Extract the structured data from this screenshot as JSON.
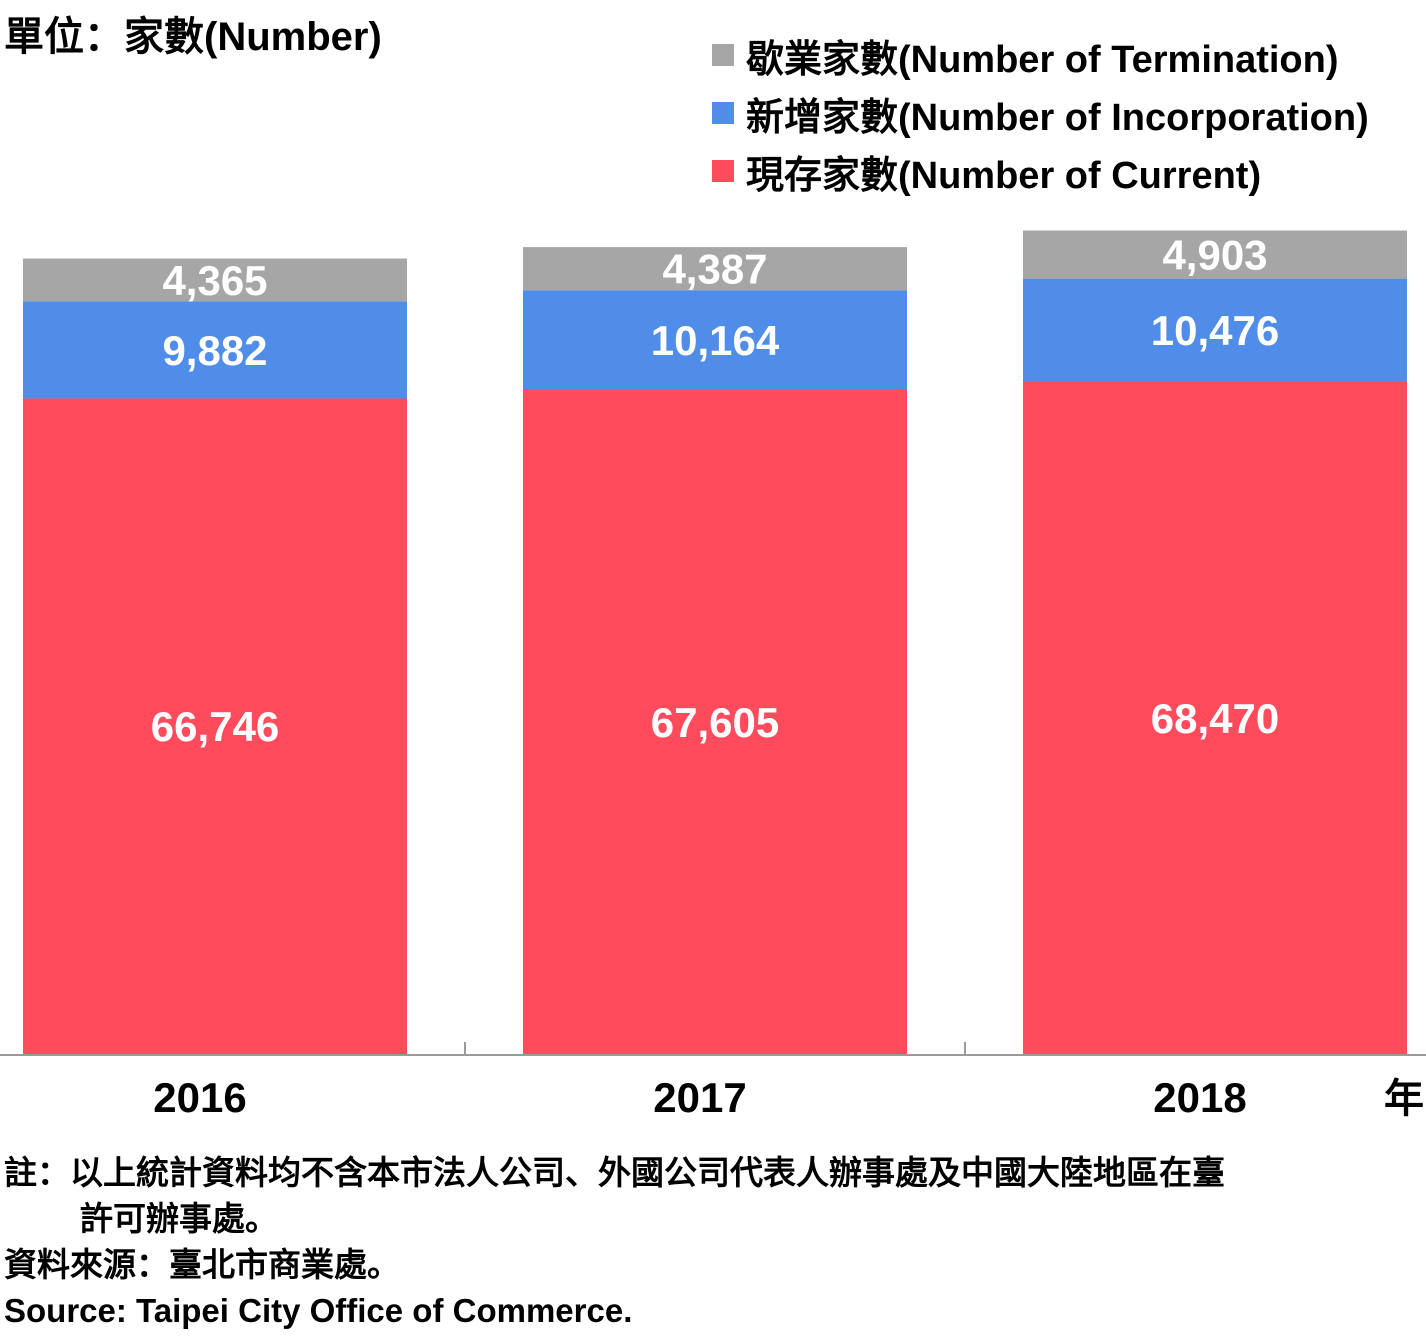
{
  "unit_label": "單位：家數(Number)",
  "year_unit": "年",
  "colors": {
    "termination": "#a6a6a6",
    "incorporation": "#4f8de8",
    "current": "#ff4b5c",
    "axis": "#9a9a9a"
  },
  "chart_data": {
    "type": "bar",
    "stacked": true,
    "categories": [
      "2016",
      "2017",
      "2018"
    ],
    "series": [
      {
        "name": "現存家數(Number of Current)",
        "key": "current",
        "values": [
          66746,
          67605,
          68470
        ],
        "labels": [
          "66,746",
          "67,605",
          "68,470"
        ]
      },
      {
        "name": "新增家數(Number of Incorporation)",
        "key": "incorporation",
        "values": [
          9882,
          10164,
          10476
        ],
        "labels": [
          "9,882",
          "10,164",
          "10,476"
        ]
      },
      {
        "name": "歇業家數(Number of Termination)",
        "key": "termination",
        "values": [
          4365,
          4387,
          4903
        ],
        "labels": [
          "4,365",
          "4,387",
          "4,903"
        ]
      }
    ],
    "legend_order": [
      "termination",
      "incorporation",
      "current"
    ],
    "legend_position": "top-right",
    "ylim": [
      0,
      84000
    ],
    "grid": false
  },
  "notes": {
    "note_line1": "註：以上統計資料均不含本市法人公司、外國公司代表人辦事處及中國大陸地區在臺",
    "note_line2": "許可辦事處。",
    "source_zh": "資料來源：臺北市商業處。",
    "source_en": "Source: Taipei City Office of Commerce."
  }
}
